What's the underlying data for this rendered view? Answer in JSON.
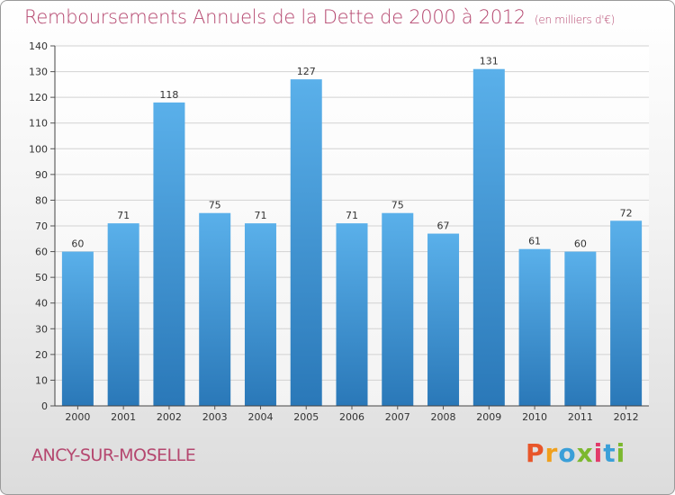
{
  "header": {
    "title": "Remboursements Annuels de la Dette de 2000 à 2012",
    "unit": "(en milliers d'€)"
  },
  "footer": {
    "commune": "ANCY-SUR-MOSELLE",
    "logo_letters": [
      "P",
      "r",
      "o",
      "x",
      "i",
      "t",
      "i"
    ],
    "logo_colors": [
      "#e8562a",
      "#f0a01c",
      "#3a9fd8",
      "#7cb82f",
      "#e23a6a",
      "#3a9fd8",
      "#7cb82f"
    ]
  },
  "colors": {
    "bar_top": "#5ab0ea",
    "bar_bottom": "#2a78b8",
    "title": "#b5476f",
    "grid": "#d2d2d2"
  },
  "chart_data": {
    "type": "bar",
    "title": "Remboursements Annuels de la Dette de 2000 à 2012",
    "categories": [
      "2000",
      "2001",
      "2002",
      "2003",
      "2004",
      "2005",
      "2006",
      "2007",
      "2008",
      "2009",
      "2010",
      "2011",
      "2012"
    ],
    "values": [
      60,
      71,
      118,
      75,
      71,
      127,
      71,
      75,
      67,
      131,
      61,
      60,
      72
    ],
    "ylim": [
      0,
      140
    ],
    "yticks": [
      0,
      10,
      20,
      30,
      40,
      50,
      60,
      70,
      80,
      90,
      100,
      110,
      120,
      130,
      140
    ],
    "grid": true
  }
}
